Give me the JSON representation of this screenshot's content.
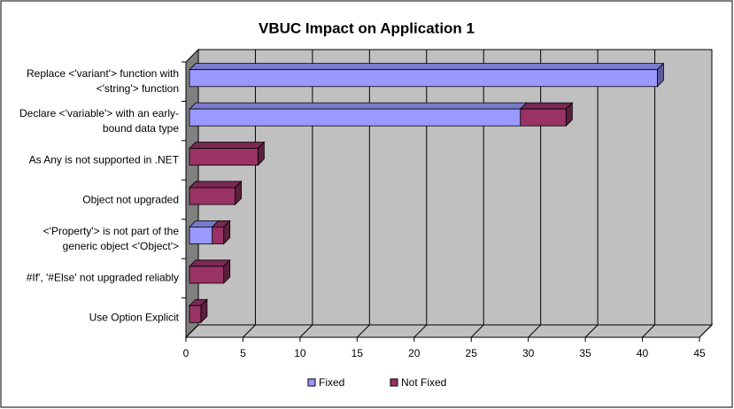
{
  "chart_data": {
    "type": "bar3d_stacked_horizontal",
    "title": "VBUC Impact on Application 1",
    "categories": [
      "Replace <'variant'> function with <'string'> function",
      "Declare <'variable'> with an early-bound data type",
      "As Any is not supported in .NET",
      "Object not upgraded",
      "<'Property'> is not part of the generic object <'Object'>",
      "#If', '#Else' not upgraded reliably",
      "Use Option Explicit"
    ],
    "series": [
      {
        "name": "Fixed",
        "color": "#9999ff",
        "values": [
          41,
          29,
          0,
          0,
          2,
          0,
          0
        ]
      },
      {
        "name": "Not Fixed",
        "color": "#993366",
        "values": [
          0,
          4,
          6,
          4,
          1,
          3,
          1
        ]
      }
    ],
    "xlim": [
      0,
      45
    ],
    "xticks": [
      0,
      5,
      10,
      15,
      20,
      25,
      30,
      35,
      40,
      45
    ],
    "grid": true,
    "legend": "bottom"
  }
}
